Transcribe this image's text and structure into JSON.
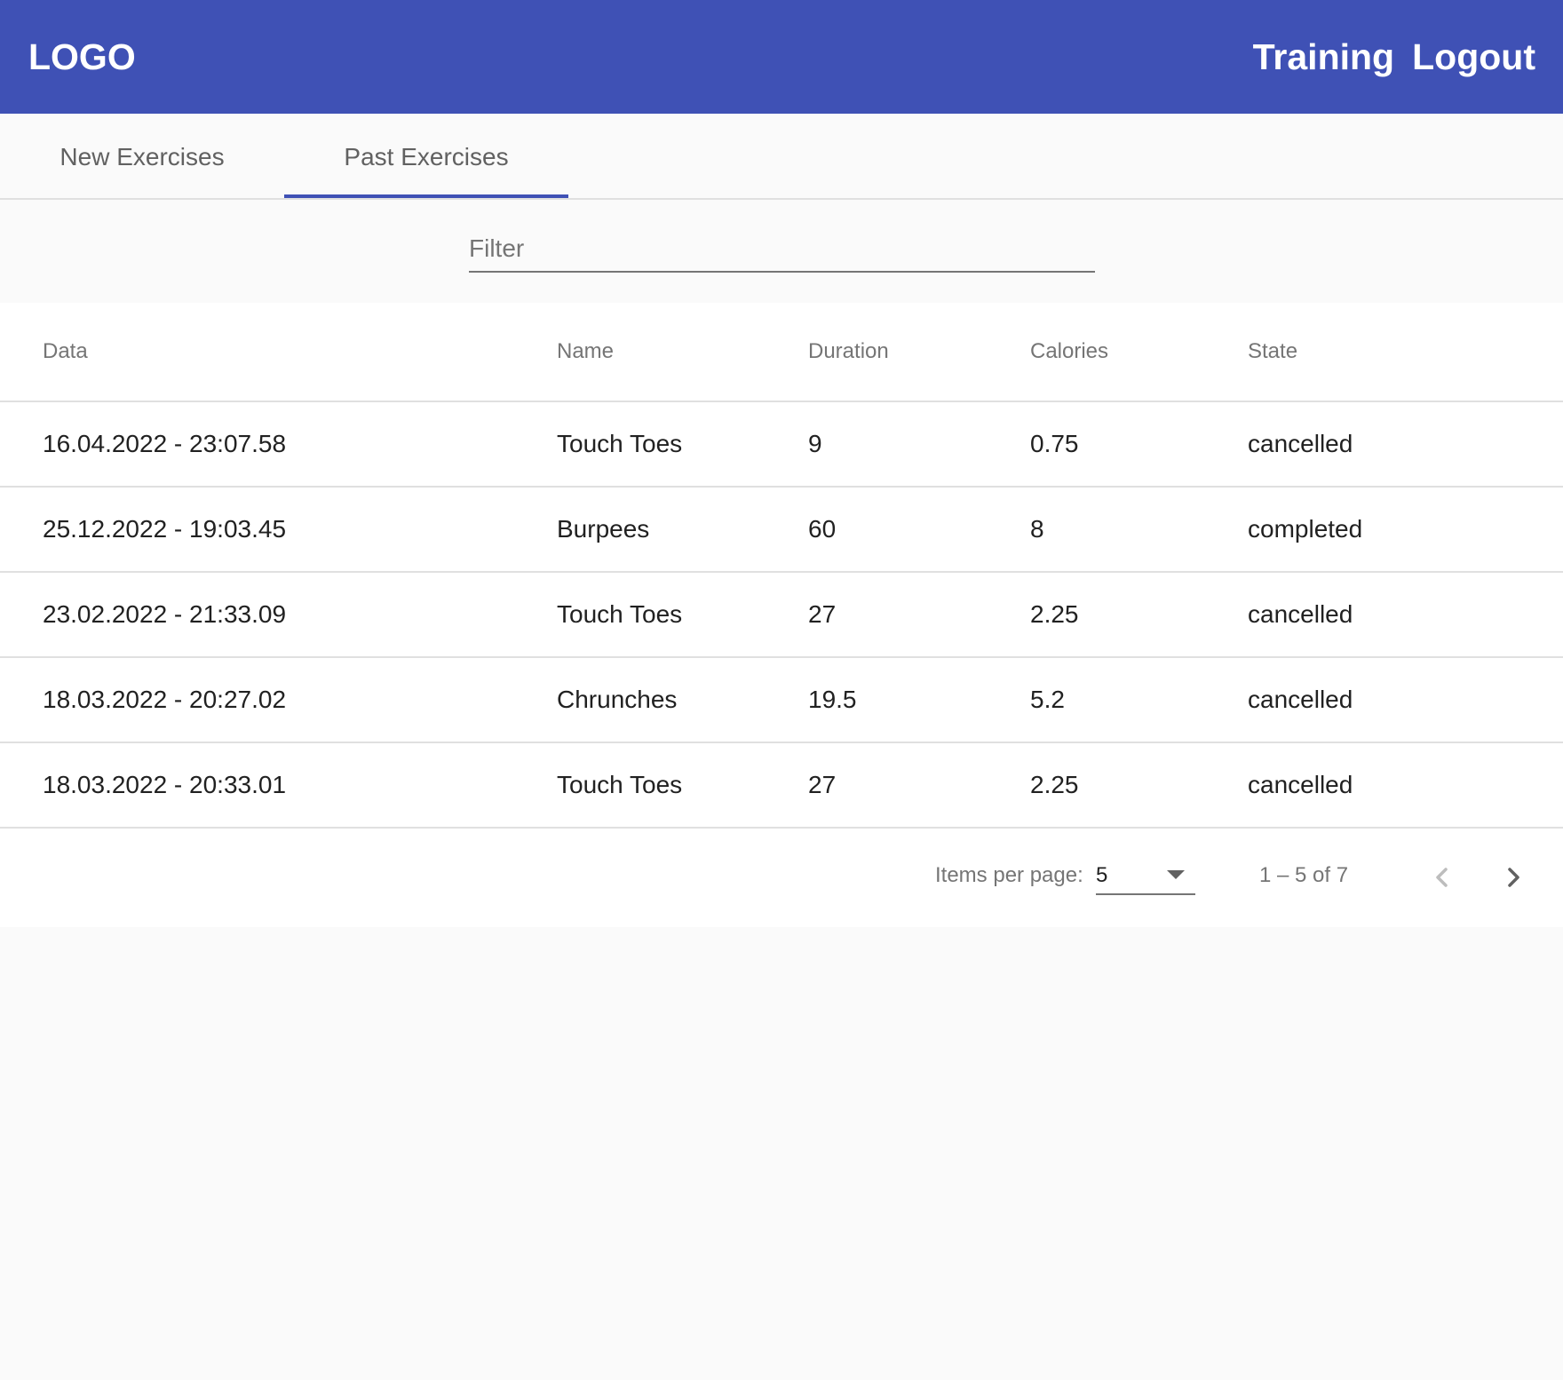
{
  "toolbar": {
    "logo": "LOGO",
    "nav": [
      "Training",
      "Logout"
    ]
  },
  "tabs": [
    {
      "label": "New Exercises",
      "active": false
    },
    {
      "label": "Past Exercises",
      "active": true
    }
  ],
  "filter": {
    "placeholder": "Filter",
    "value": ""
  },
  "table": {
    "columns": [
      "Data",
      "Name",
      "Duration",
      "Calories",
      "State"
    ],
    "rows": [
      [
        "16.04.2022 - 23:07.58",
        "Touch Toes",
        "9",
        "0.75",
        "cancelled"
      ],
      [
        "25.12.2022 - 19:03.45",
        "Burpees",
        "60",
        "8",
        "completed"
      ],
      [
        "23.02.2022 - 21:33.09",
        "Touch Toes",
        "27",
        "2.25",
        "cancelled"
      ],
      [
        "18.03.2022 - 20:27.02",
        "Chrunches",
        "19.5",
        "5.2",
        "cancelled"
      ],
      [
        "18.03.2022 - 20:33.01",
        "Touch Toes",
        "27",
        "2.25",
        "cancelled"
      ]
    ]
  },
  "paginator": {
    "items_per_page_label": "Items per page:",
    "items_per_page_value": "5",
    "range_label": "1 – 5 of 7",
    "prev_icon": "chevron-left-icon",
    "next_icon": "chevron-right-icon"
  },
  "colors": {
    "primary": "#3f51b5",
    "background": "#fafafa",
    "text": "#212121",
    "muted": "#757575",
    "divider": "#e0e0e0"
  }
}
